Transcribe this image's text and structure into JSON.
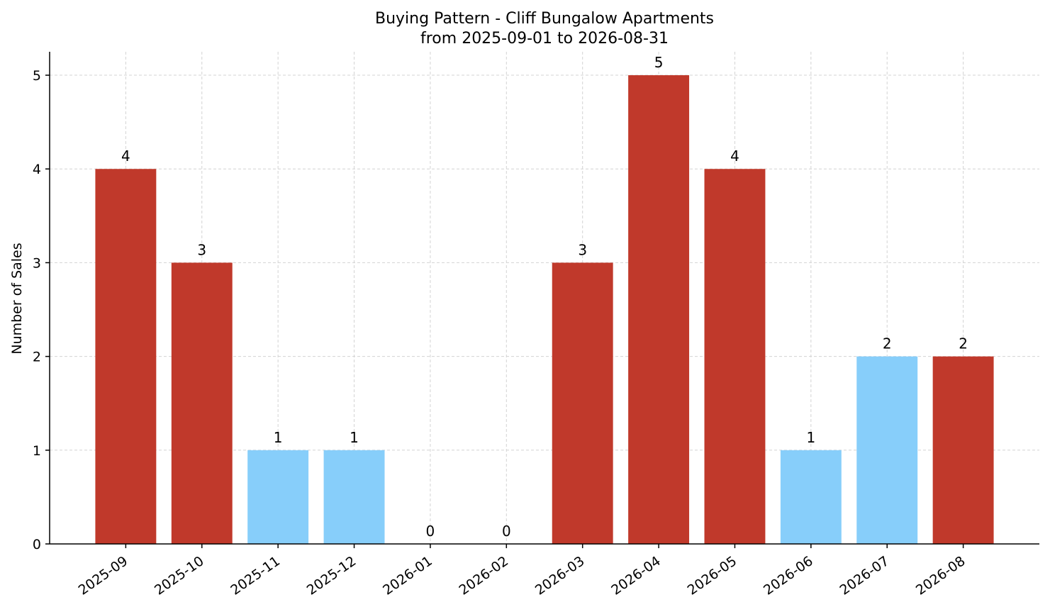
{
  "chart_data": {
    "type": "bar",
    "title": "Buying Pattern - Cliff Bungalow Apartments",
    "subtitle": "from 2025-09-01 to 2026-08-31",
    "xlabel": "",
    "ylabel": "Number of Sales",
    "ylim": [
      0,
      5.25
    ],
    "yticks": [
      "0",
      "1",
      "2",
      "3",
      "4",
      "5"
    ],
    "grid": true,
    "categories": [
      "2025-09",
      "2025-10",
      "2025-11",
      "2025-12",
      "2026-01",
      "2026-02",
      "2026-03",
      "2026-04",
      "2026-05",
      "2026-06",
      "2026-07",
      "2026-08"
    ],
    "values": [
      4,
      3,
      1,
      1,
      0,
      0,
      3,
      5,
      4,
      1,
      2,
      2
    ],
    "bar_colors": [
      "#c0392b",
      "#c0392b",
      "#87cefa",
      "#87cefa",
      "#87cefa",
      "#87cefa",
      "#c0392b",
      "#c0392b",
      "#c0392b",
      "#87cefa",
      "#87cefa",
      "#c0392b"
    ]
  }
}
